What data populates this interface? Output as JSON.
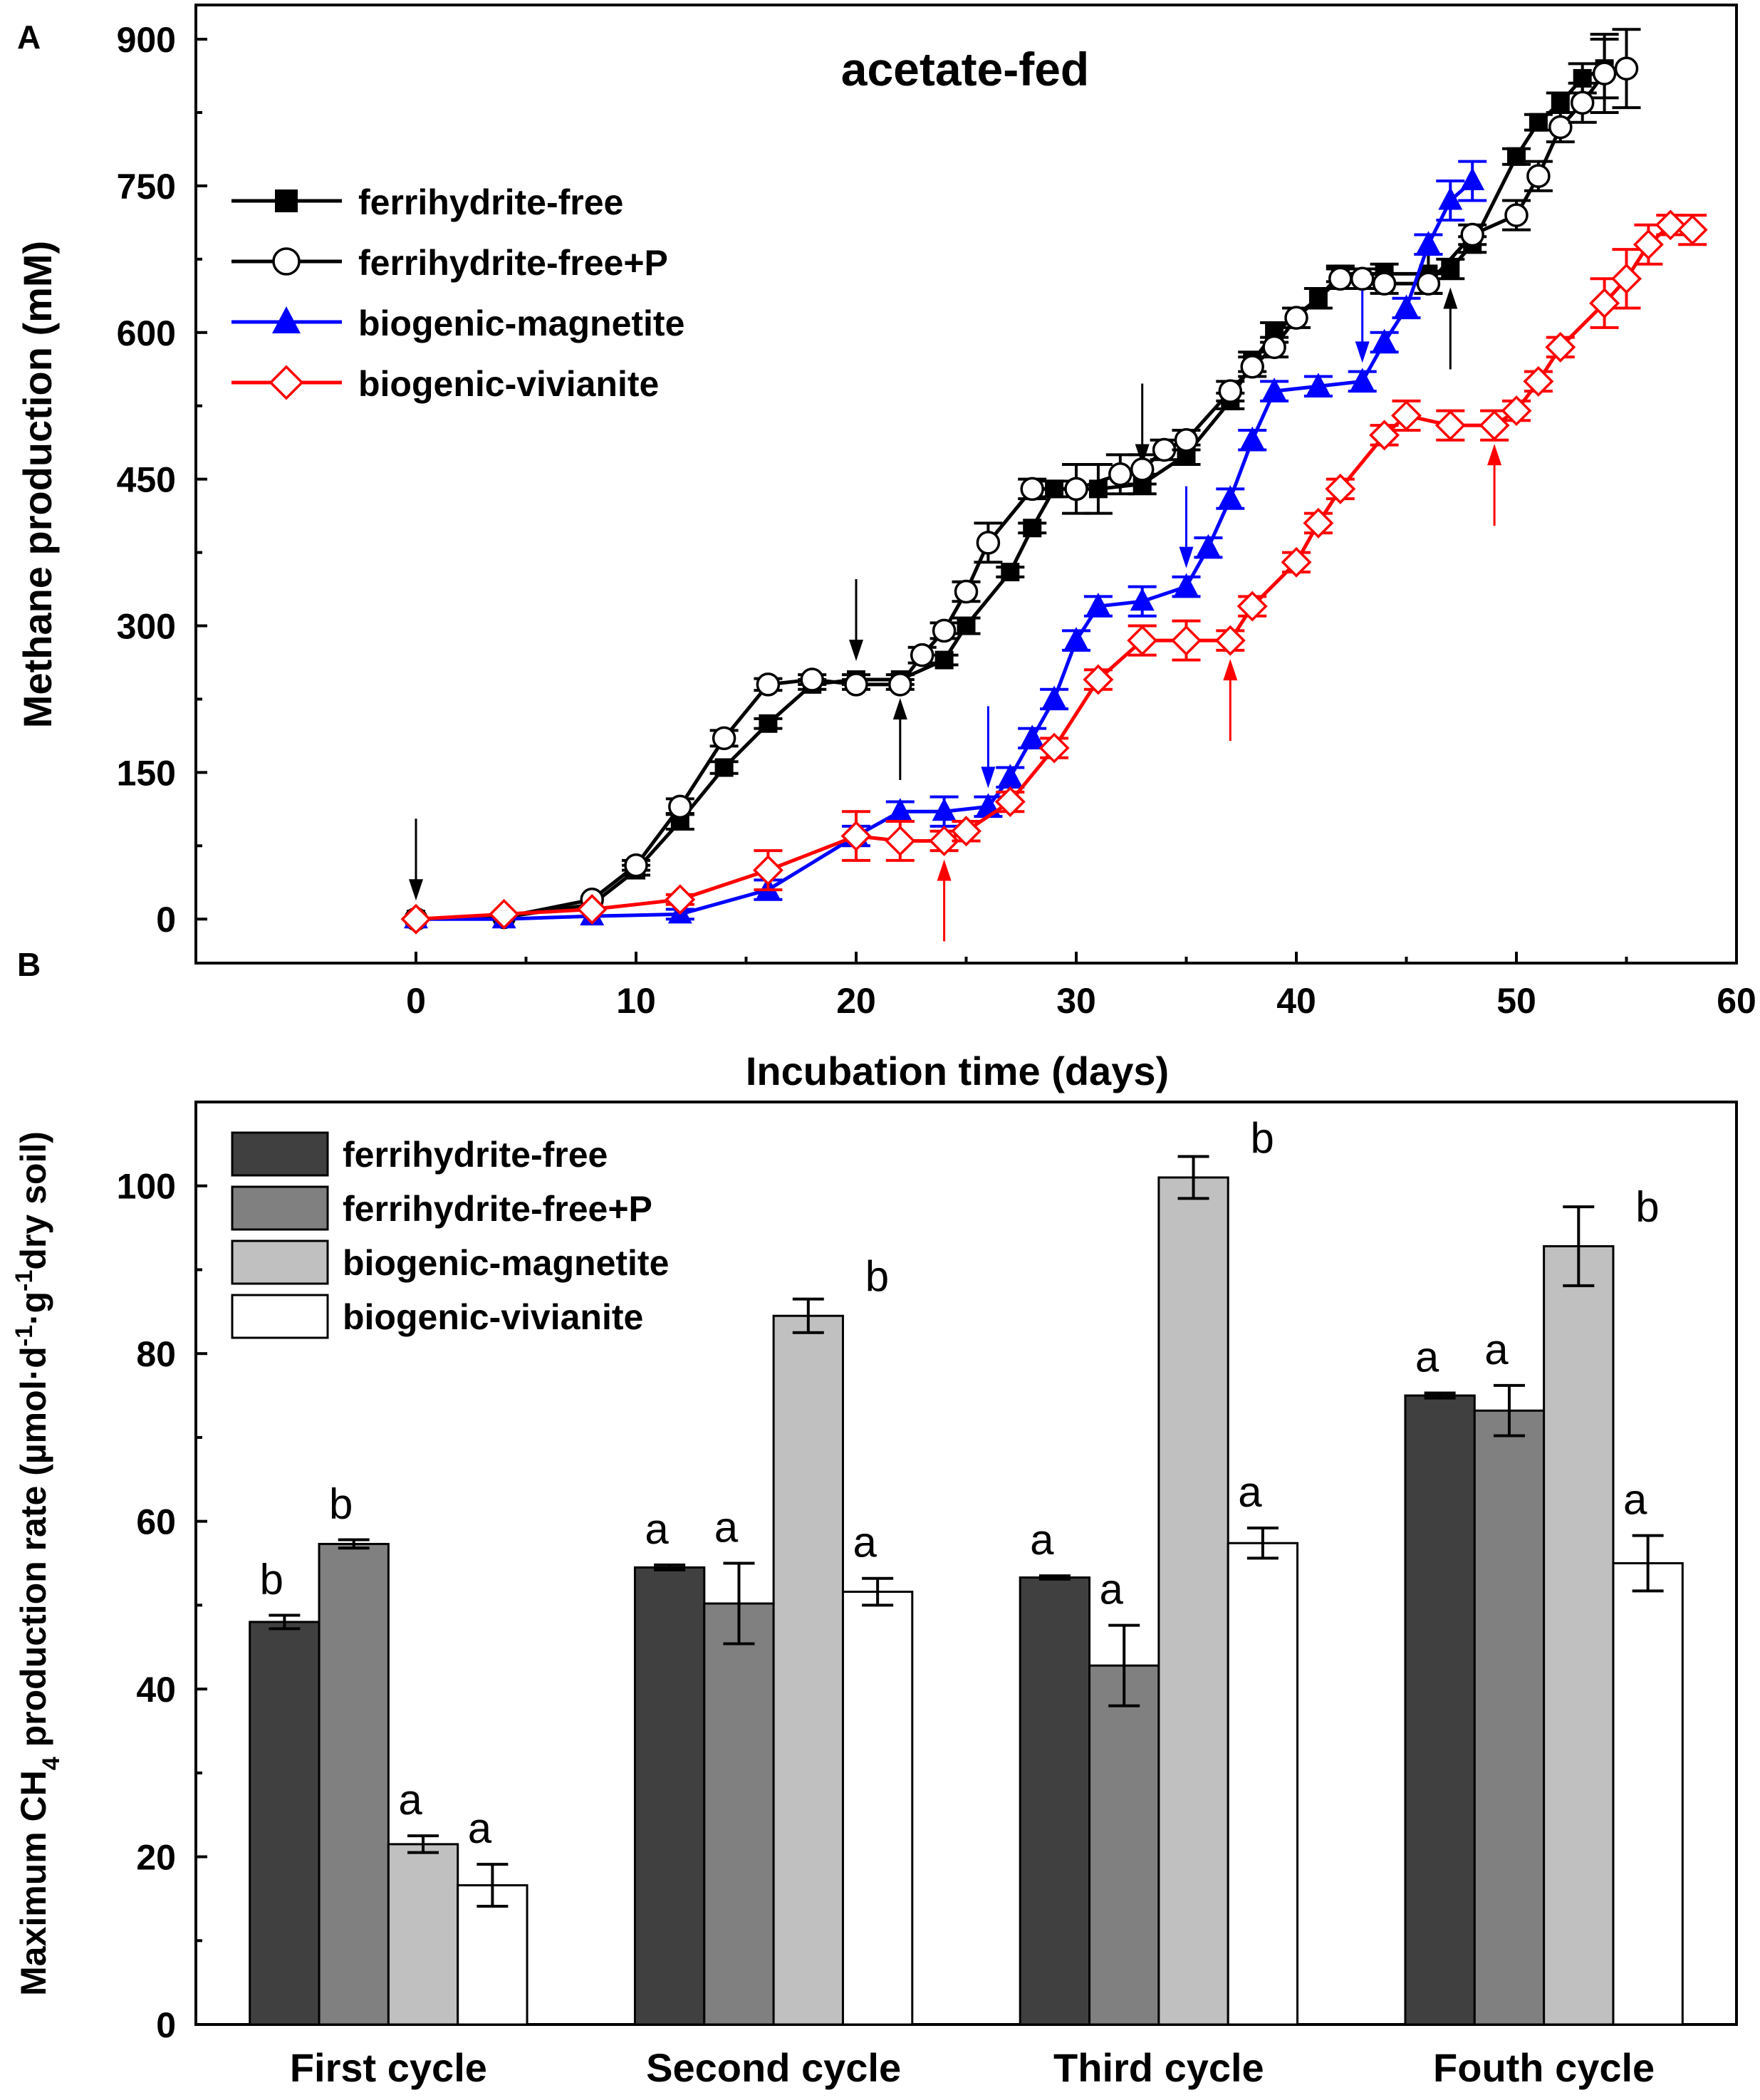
{
  "chart_data": [
    {
      "type": "line",
      "panel_label": "A",
      "title": "acetate-fed",
      "xlabel": "Incubation time (days)",
      "ylabel": "Methane production (mM)",
      "xlim": [
        -10,
        60
      ],
      "ylim": [
        -45,
        935
      ],
      "xticks": [
        0,
        10,
        20,
        30,
        40,
        50,
        60
      ],
      "yticks": [
        0,
        150,
        300,
        450,
        600,
        750,
        900
      ],
      "legend_position": "top-left",
      "series": [
        {
          "name": "ferrihydrite-free",
          "color": "#000000",
          "marker": "square-filled",
          "x": [
            0,
            4,
            8,
            10,
            12,
            14,
            16,
            18,
            20,
            22,
            24,
            25,
            27,
            28,
            29,
            31,
            33,
            35,
            37,
            38,
            39,
            41,
            42,
            44,
            46,
            47,
            48,
            50,
            51,
            52,
            53,
            54
          ],
          "y": [
            0,
            2,
            15,
            50,
            100,
            155,
            200,
            240,
            245,
            245,
            265,
            300,
            355,
            400,
            440,
            440,
            445,
            475,
            530,
            570,
            600,
            635,
            660,
            660,
            660,
            665,
            690,
            780,
            815,
            835,
            860,
            870
          ],
          "err": [
            0,
            0,
            0,
            5,
            8,
            6,
            5,
            5,
            5,
            5,
            5,
            8,
            5,
            5,
            8,
            25,
            10,
            10,
            8,
            10,
            10,
            10,
            8,
            10,
            20,
            10,
            8,
            8,
            8,
            10,
            15,
            30
          ]
        },
        {
          "name": "ferrihydrite-free+P",
          "color": "#000000",
          "marker": "circle-open",
          "x": [
            0,
            4,
            8,
            10,
            12,
            14,
            16,
            18,
            20,
            22,
            23,
            24,
            25,
            26,
            28,
            30,
            32,
            33,
            34,
            35,
            37,
            38,
            39,
            40,
            42,
            43,
            44,
            46,
            48,
            50,
            51,
            52,
            53,
            54,
            55
          ],
          "y": [
            0,
            2,
            20,
            55,
            115,
            185,
            240,
            245,
            240,
            240,
            270,
            295,
            335,
            385,
            440,
            440,
            455,
            460,
            480,
            490,
            540,
            565,
            585,
            615,
            655,
            655,
            650,
            650,
            700,
            720,
            760,
            810,
            835,
            865,
            870
          ],
          "err": [
            0,
            0,
            0,
            5,
            8,
            8,
            6,
            5,
            5,
            5,
            8,
            8,
            10,
            20,
            10,
            25,
            20,
            15,
            10,
            10,
            10,
            10,
            10,
            10,
            10,
            10,
            10,
            10,
            10,
            15,
            15,
            15,
            20,
            40,
            40
          ]
        },
        {
          "name": "biogenic-magnetite",
          "color": "#0000ff",
          "marker": "triangle-filled",
          "x": [
            0,
            4,
            8,
            12,
            16,
            20,
            22,
            24,
            26,
            27,
            28,
            29,
            30,
            31,
            33,
            35,
            36,
            37,
            38,
            39,
            41,
            43,
            44,
            45,
            46,
            47,
            48
          ],
          "y": [
            0,
            0,
            3,
            5,
            30,
            85,
            110,
            110,
            115,
            145,
            185,
            225,
            285,
            320,
            325,
            340,
            380,
            430,
            490,
            540,
            545,
            550,
            590,
            625,
            690,
            735,
            755
          ],
          "err": [
            0,
            0,
            0,
            5,
            10,
            10,
            10,
            15,
            10,
            10,
            10,
            10,
            10,
            10,
            15,
            10,
            10,
            10,
            10,
            10,
            10,
            10,
            10,
            10,
            10,
            20,
            20
          ]
        },
        {
          "name": "biogenic-vivianite",
          "color": "#ff0000",
          "marker": "diamond-open",
          "x": [
            0,
            4,
            8,
            12,
            16,
            20,
            22,
            24,
            25,
            27,
            29,
            31,
            33,
            35,
            37,
            38,
            40,
            41,
            42,
            44,
            45,
            47,
            49,
            50,
            51,
            52,
            54,
            55,
            56,
            57,
            58
          ],
          "y": [
            0,
            5,
            10,
            20,
            50,
            85,
            80,
            80,
            90,
            120,
            175,
            245,
            285,
            285,
            285,
            320,
            365,
            405,
            440,
            495,
            515,
            505,
            505,
            520,
            550,
            585,
            630,
            655,
            690,
            710,
            705
          ],
          "err": [
            0,
            0,
            0,
            5,
            20,
            25,
            20,
            10,
            10,
            10,
            10,
            10,
            15,
            20,
            10,
            10,
            10,
            10,
            10,
            10,
            15,
            15,
            15,
            10,
            10,
            10,
            25,
            30,
            20,
            10,
            15
          ]
        }
      ],
      "annotations": [
        {
          "text": "arrow-down",
          "color": "#000000",
          "x": 0,
          "y": 0
        },
        {
          "text": "arrow-down",
          "color": "#000000",
          "x": 20,
          "y": 245
        },
        {
          "text": "arrow-down",
          "color": "#000000",
          "x": 33,
          "y": 445
        },
        {
          "text": "arrow-up",
          "color": "#000000",
          "x": 22,
          "y": 245
        },
        {
          "text": "arrow-up",
          "color": "#000000",
          "x": 47,
          "y": 665
        },
        {
          "text": "arrow-down",
          "color": "#0000ff",
          "x": 26,
          "y": 115
        },
        {
          "text": "arrow-down",
          "color": "#0000ff",
          "x": 35,
          "y": 340
        },
        {
          "text": "arrow-down",
          "color": "#0000ff",
          "x": 43,
          "y": 550
        },
        {
          "text": "arrow-up",
          "color": "#ff0000",
          "x": 24,
          "y": 80
        },
        {
          "text": "arrow-up",
          "color": "#ff0000",
          "x": 37,
          "y": 285
        },
        {
          "text": "arrow-up",
          "color": "#ff0000",
          "x": 49,
          "y": 505
        }
      ]
    },
    {
      "type": "bar",
      "panel_label": "B",
      "xlabel": "",
      "ylabel_parts": [
        "Maximum CH",
        "4",
        " production rate (µmol·d",
        "-1",
        "·g",
        "-1",
        "dry soil)"
      ],
      "ylim": [
        0,
        110
      ],
      "yticks": [
        0,
        20,
        40,
        60,
        80,
        100
      ],
      "legend_position": "top-left",
      "categories": [
        "First cycle",
        "Second cycle",
        "Third cycle",
        "Fouth cycle"
      ],
      "series": [
        {
          "name": "ferrihydrite-free",
          "color": "#404040",
          "values": [
            48,
            54.5,
            53.3,
            75
          ],
          "errors": [
            0.8,
            0.3,
            0.2,
            0.3
          ],
          "letters": [
            "b",
            "a",
            "a",
            "a"
          ]
        },
        {
          "name": "ferrihydrite-free+P",
          "color": "#808080",
          "values": [
            57.3,
            50.2,
            42.8,
            73.2
          ],
          "errors": [
            0.5,
            4.8,
            4.8,
            3
          ],
          "letters": [
            "b",
            "a",
            "a",
            "a"
          ]
        },
        {
          "name": "biogenic-magnetite",
          "color": "#c0c0c0",
          "values": [
            21.5,
            84.5,
            101,
            92.8
          ],
          "errors": [
            1,
            2,
            2.5,
            4.7
          ],
          "letters": [
            "a",
            "b",
            "b",
            "b"
          ]
        },
        {
          "name": "biogenic-vivianite",
          "color": "#ffffff",
          "values": [
            16.6,
            51.6,
            57.4,
            55
          ],
          "errors": [
            2.5,
            1.6,
            1.8,
            3.3
          ],
          "letters": [
            "a",
            "a",
            "a",
            "a"
          ]
        }
      ]
    }
  ]
}
